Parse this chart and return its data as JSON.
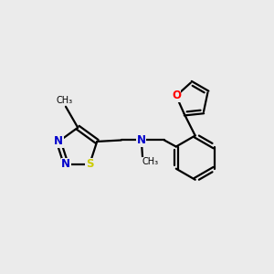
{
  "background_color": "#ebebeb",
  "atom_colors": {
    "C": "#000000",
    "N": "#0000cc",
    "O": "#ff0000",
    "S": "#cccc00"
  },
  "line_color": "#000000",
  "line_width": 1.6,
  "font_size": 8.5,
  "figsize": [
    3.0,
    3.0
  ],
  "dpi": 100
}
